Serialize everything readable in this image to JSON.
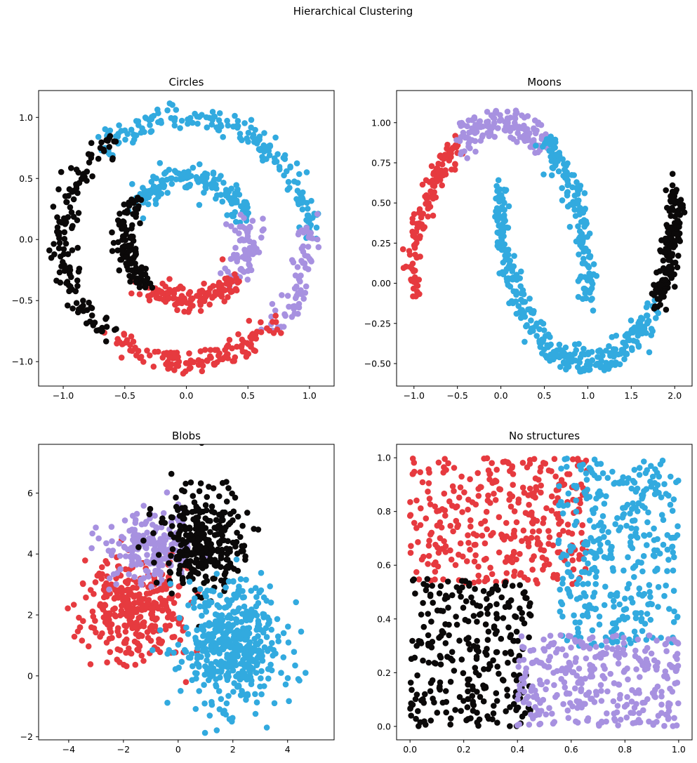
{
  "figure": {
    "suptitle": "Hierarchical Clustering"
  },
  "colors": {
    "cluster_1": "#e63a3f",
    "cluster_2": "#32aadf",
    "cluster_3": "#a791e0",
    "cluster_4": "#0b0909"
  },
  "chart_data": [
    {
      "type": "scatter",
      "title": "Circles",
      "xlim": [
        -1.2,
        1.2
      ],
      "ylim": [
        -1.2,
        1.22
      ],
      "xticks": [
        -1.0,
        -0.5,
        0.0,
        0.5,
        1.0
      ],
      "xtick_labels": [
        "−1.0",
        "−0.5",
        "0.0",
        "0.5",
        "1.0"
      ],
      "yticks": [
        -1.0,
        -0.5,
        0.0,
        0.5,
        1.0
      ],
      "ytick_labels": [
        "−1.0",
        "−0.5",
        "0.0",
        "0.5",
        "1.0"
      ],
      "clusters": [
        {
          "color": "#32aadf",
          "shape": "ring",
          "cx": 0,
          "cy": 0,
          "r": 1.0,
          "angle_range_deg": [
            0,
            135
          ],
          "spread": 0.05,
          "n": 190
        },
        {
          "color": "#a791e0",
          "shape": "ring",
          "cx": 0,
          "cy": 0,
          "r": 1.0,
          "angle_range_deg": [
            -45,
            5
          ],
          "spread": 0.05,
          "n": 70
        },
        {
          "color": "#e63a3f",
          "shape": "ring",
          "cx": 0,
          "cy": 0,
          "r": 1.0,
          "angle_range_deg": [
            -128,
            -45
          ],
          "spread": 0.05,
          "n": 130
        },
        {
          "color": "#0b0909",
          "shape": "ring",
          "cx": 0,
          "cy": 0,
          "r": 1.0,
          "angle_range_deg": [
            -232,
            -128
          ],
          "spread": 0.05,
          "n": 140
        },
        {
          "color": "#32aadf",
          "shape": "ring",
          "cx": 0,
          "cy": 0,
          "r": 0.5,
          "angle_range_deg": [
            20,
            145
          ],
          "spread": 0.05,
          "n": 160
        },
        {
          "color": "#a791e0",
          "shape": "ring",
          "cx": 0,
          "cy": 0,
          "r": 0.5,
          "angle_range_deg": [
            -40,
            20
          ],
          "spread": 0.05,
          "n": 80
        },
        {
          "color": "#e63a3f",
          "shape": "ring",
          "cx": 0,
          "cy": 0,
          "r": 0.5,
          "angle_range_deg": [
            -130,
            -40
          ],
          "spread": 0.05,
          "n": 130
        },
        {
          "color": "#0b0909",
          "shape": "ring",
          "cx": 0,
          "cy": 0,
          "r": 0.5,
          "angle_range_deg": [
            -215,
            -130
          ],
          "spread": 0.05,
          "n": 110
        }
      ]
    },
    {
      "type": "scatter",
      "title": "Moons",
      "xlim": [
        -1.2,
        2.2
      ],
      "ylim": [
        -0.64,
        1.2
      ],
      "xticks": [
        -1.0,
        -0.5,
        0.0,
        0.5,
        1.0,
        1.5,
        2.0
      ],
      "xtick_labels": [
        "−1.0",
        "−0.5",
        "0.0",
        "0.5",
        "1.0",
        "1.5",
        "2.0"
      ],
      "yticks": [
        -0.5,
        -0.25,
        0.0,
        0.25,
        0.5,
        0.75,
        1.0
      ],
      "ytick_labels": [
        "−0.50",
        "−0.25",
        "0.00",
        "0.25",
        "0.50",
        "0.75",
        "1.00"
      ],
      "clusters": [
        {
          "color": "#e63a3f",
          "shape": "arc",
          "cx": 0,
          "cy": 0,
          "r": 1.0,
          "angle_range_deg": [
            118,
            185
          ],
          "spread": 0.05,
          "n": 130
        },
        {
          "color": "#a791e0",
          "shape": "arc",
          "cx": 0,
          "cy": 0,
          "r": 1.0,
          "angle_range_deg": [
            60,
            118
          ],
          "spread": 0.05,
          "n": 150
        },
        {
          "color": "#32aadf",
          "shape": "arc",
          "cx": 0,
          "cy": 0,
          "r": 1.0,
          "angle_range_deg": [
            -5,
            60
          ],
          "spread": 0.05,
          "n": 150
        },
        {
          "color": "#32aadf",
          "shape": "arc",
          "cx": 1,
          "cy": 0.5,
          "r": 1.0,
          "angle_range_deg": [
            175,
            322
          ],
          "spread": 0.05,
          "n": 330
        },
        {
          "color": "#0b0909",
          "shape": "arc",
          "cx": 1,
          "cy": 0.5,
          "r": 1.0,
          "angle_range_deg": [
            322,
            365
          ],
          "spread": 0.05,
          "n": 150
        }
      ]
    },
    {
      "type": "scatter",
      "title": "Blobs",
      "xlim": [
        -5.1,
        5.7
      ],
      "ylim": [
        -2.1,
        7.6
      ],
      "xticks": [
        -4,
        -2,
        0,
        2,
        4
      ],
      "xtick_labels": [
        "−4",
        "−2",
        "0",
        "2",
        "4"
      ],
      "yticks": [
        -2,
        0,
        2,
        4,
        6
      ],
      "ytick_labels": [
        "−2",
        "0",
        "2",
        "4",
        "6"
      ],
      "clusters": [
        {
          "color": "#e63a3f",
          "shape": "gauss",
          "cx": -1.5,
          "cy": 2.3,
          "sx": 1.0,
          "sy": 0.8,
          "n": 330
        },
        {
          "color": "#a791e0",
          "shape": "gauss",
          "cx": -1.0,
          "cy": 4.2,
          "sx": 0.8,
          "sy": 0.6,
          "n": 200
        },
        {
          "color": "#0b0909",
          "shape": "gauss",
          "cx": 0.9,
          "cy": 4.4,
          "sx": 0.75,
          "sy": 0.8,
          "n": 300
        },
        {
          "color": "#32aadf",
          "shape": "gauss",
          "cx": 2.0,
          "cy": 1.0,
          "sx": 0.9,
          "sy": 1.0,
          "n": 470
        }
      ]
    },
    {
      "type": "scatter",
      "title": "No structures",
      "xlim": [
        -0.05,
        1.05
      ],
      "ylim": [
        -0.05,
        1.05
      ],
      "xticks": [
        0.0,
        0.2,
        0.4,
        0.6,
        0.8,
        1.0
      ],
      "xtick_labels": [
        "0.0",
        "0.2",
        "0.4",
        "0.6",
        "0.8",
        "1.0"
      ],
      "yticks": [
        0.0,
        0.2,
        0.4,
        0.6,
        0.8,
        1.0
      ],
      "ytick_labels": [
        "0.0",
        "0.2",
        "0.4",
        "0.6",
        "0.8",
        "1.0"
      ],
      "clusters": [
        {
          "color": "#e63a3f",
          "shape": "rect",
          "x0": 0.0,
          "x1": 0.66,
          "y0": 0.53,
          "y1": 1.0,
          "n": 340
        },
        {
          "color": "#32aadf",
          "shape": "rect",
          "x0": 0.55,
          "x1": 1.0,
          "y0": 0.3,
          "y1": 1.0,
          "n": 360
        },
        {
          "color": "#0b0909",
          "shape": "rect",
          "x0": 0.0,
          "x1": 0.45,
          "y0": 0.0,
          "y1": 0.55,
          "n": 280
        },
        {
          "color": "#a791e0",
          "shape": "rect",
          "x0": 0.4,
          "x1": 1.0,
          "y0": 0.0,
          "y1": 0.34,
          "n": 320
        }
      ]
    }
  ]
}
